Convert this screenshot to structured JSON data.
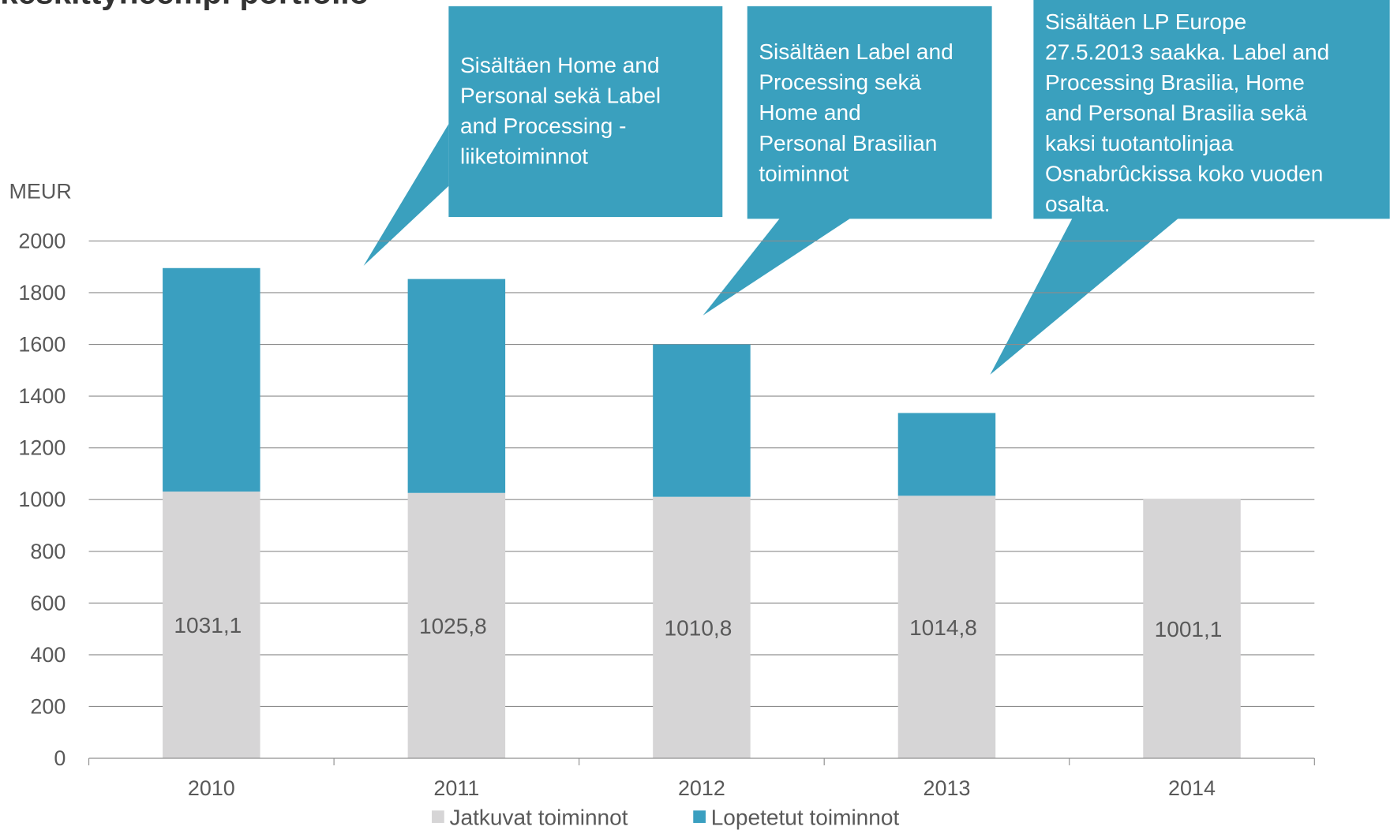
{
  "chart_data": {
    "type": "stacked-bar",
    "title": "keskittyneempi portfolio",
    "y_label": "MEUR",
    "categories": [
      "2010",
      "2011",
      "2012",
      "2013",
      "2014"
    ],
    "series": [
      {
        "name": "Jatkuvat toiminnot",
        "color": "#d6d5d6",
        "values": [
          1031.1,
          1025.8,
          1010.8,
          1014.8,
          1001.1
        ],
        "value_labels": [
          "1031,1",
          "1025,8",
          "1010,8",
          "1014,8",
          "1001,1"
        ]
      },
      {
        "name": "Lopetetut toiminnot",
        "color": "#3a9fc0",
        "values": [
          864,
          827,
          589,
          320,
          null
        ]
      }
    ],
    "ylim": [
      0,
      2000
    ],
    "yticks": [
      0,
      200,
      400,
      600,
      800,
      1000,
      1200,
      1400,
      1600,
      1800,
      2000
    ],
    "grid": true,
    "legend": "bottom",
    "annotations": [
      {
        "lines": [
          "Sisältäen Home and",
          "Personal sekä Label",
          "and Processing -",
          "liiketoiminnot"
        ]
      },
      {
        "lines": [
          "Sisältäen Label and",
          "Processing sekä",
          "Home and",
          "Personal Brasilian",
          "toiminnot"
        ]
      },
      {
        "lines": [
          "Sisältäen LP Europe",
          "27.5.2013 saakka. Label and",
          "Processing Brasilia, Home",
          "and Personal Brasilia sekä",
          "kaksi tuotantolinjaa",
          "Osnabrûckissa koko vuoden",
          "osalta."
        ]
      }
    ]
  }
}
